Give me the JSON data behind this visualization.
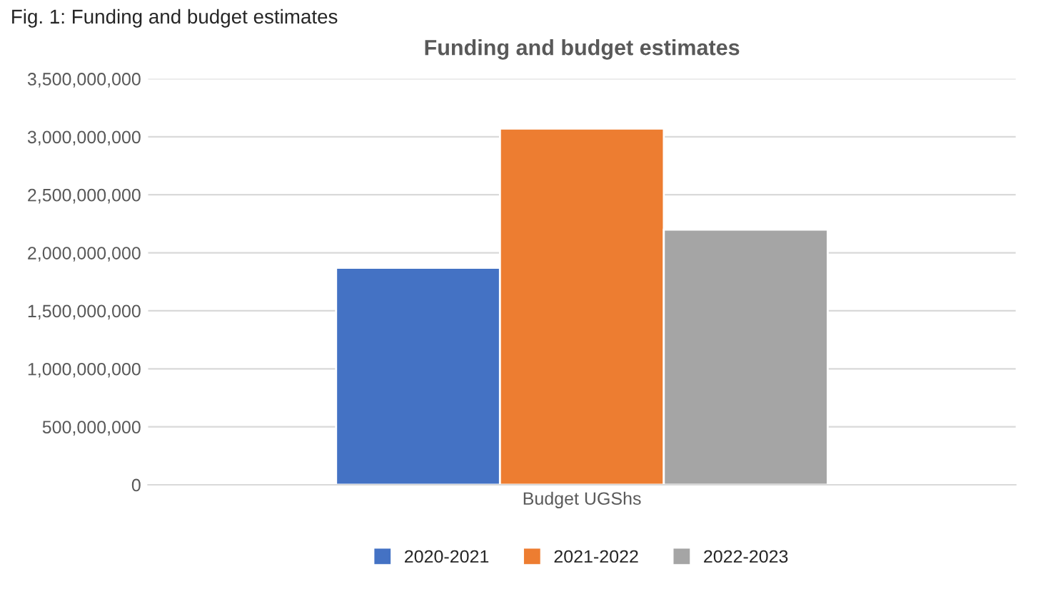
{
  "chart_data": {
    "type": "bar",
    "title": "Funding and budget estimates",
    "annotations": [
      "Fig. 1: Funding and budget estimates"
    ],
    "categories": [
      "Budget UGShs"
    ],
    "series": [
      {
        "name": "2020-2021",
        "color": "#4472c4",
        "values": [
          1870000000
        ]
      },
      {
        "name": "2021-2022",
        "color": "#ed7d31",
        "values": [
          3070000000
        ]
      },
      {
        "name": "2022-2023",
        "color": "#a5a5a5",
        "values": [
          2200000000
        ]
      }
    ],
    "ylim": [
      0,
      3500000000
    ],
    "yticks": [
      {
        "value": 0,
        "label": "0"
      },
      {
        "value": 500000000,
        "label": "500,000,000"
      },
      {
        "value": 1000000000,
        "label": "1,000,000,000"
      },
      {
        "value": 1500000000,
        "label": "1,500,000,000"
      },
      {
        "value": 2000000000,
        "label": "2,000,000,000"
      },
      {
        "value": 2500000000,
        "label": "2,500,000,000"
      },
      {
        "value": 3000000000,
        "label": "3,000,000,000"
      },
      {
        "value": 3500000000,
        "label": "3,500,000,000"
      }
    ],
    "grid": "y",
    "legend": "bottom"
  }
}
